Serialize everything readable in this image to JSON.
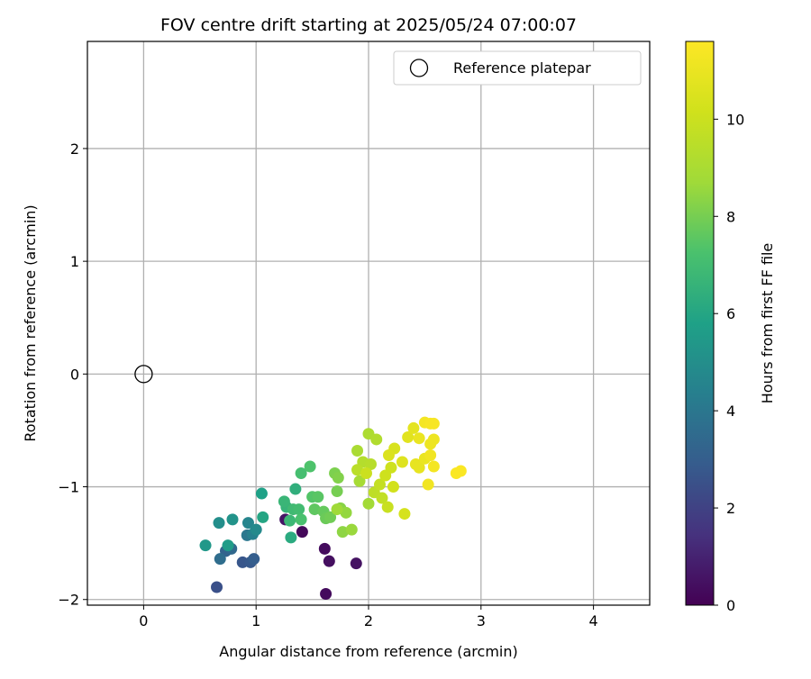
{
  "chart_data": {
    "type": "scatter",
    "title": "FOV centre drift starting at 2025/05/24 07:00:07",
    "xlabel": "Angular distance from reference (arcmin)",
    "ylabel": "Rotation from reference (arcmin)",
    "xlim": [
      -0.5,
      4.5
    ],
    "ylim": [
      -2.05,
      2.95
    ],
    "xticks": [
      0,
      1,
      2,
      3,
      4
    ],
    "xtick_labels": [
      "0",
      "1",
      "2",
      "3",
      "4"
    ],
    "yticks": [
      -2,
      -1,
      0,
      1,
      2
    ],
    "ytick_labels": [
      "−2",
      "−1",
      "0",
      "1",
      "2"
    ],
    "grid": true,
    "legend_position": "top-right",
    "legend_label": "Reference platepar",
    "reference_point": {
      "x": 0,
      "y": 0
    },
    "colorbar": {
      "label": "Hours from first FF file",
      "range": [
        0,
        11.6
      ],
      "ticks": [
        0,
        2,
        4,
        6,
        8,
        10
      ],
      "tick_labels": [
        "0",
        "2",
        "4",
        "6",
        "8",
        "10"
      ],
      "colormap": "viridis"
    },
    "points": [
      {
        "x": 1.41,
        "y": -1.4,
        "t": 0.2
      },
      {
        "x": 1.61,
        "y": -1.55,
        "t": 0.3
      },
      {
        "x": 1.65,
        "y": -1.66,
        "t": 0.4
      },
      {
        "x": 1.62,
        "y": -1.95,
        "t": 0.3
      },
      {
        "x": 1.89,
        "y": -1.68,
        "t": 0.5
      },
      {
        "x": 1.26,
        "y": -1.29,
        "t": 0.6
      },
      {
        "x": 0.65,
        "y": -1.89,
        "t": 2.5
      },
      {
        "x": 0.88,
        "y": -1.67,
        "t": 2.7
      },
      {
        "x": 0.95,
        "y": -1.67,
        "t": 2.8
      },
      {
        "x": 0.98,
        "y": -1.64,
        "t": 3.0
      },
      {
        "x": 0.73,
        "y": -1.57,
        "t": 3.2
      },
      {
        "x": 0.78,
        "y": -1.55,
        "t": 3.4
      },
      {
        "x": 0.68,
        "y": -1.64,
        "t": 3.6
      },
      {
        "x": 0.92,
        "y": -1.43,
        "t": 4.0
      },
      {
        "x": 0.97,
        "y": -1.42,
        "t": 4.4
      },
      {
        "x": 0.93,
        "y": -1.32,
        "t": 4.6
      },
      {
        "x": 1.0,
        "y": -1.38,
        "t": 4.8
      },
      {
        "x": 0.67,
        "y": -1.32,
        "t": 5.0
      },
      {
        "x": 0.79,
        "y": -1.29,
        "t": 5.2
      },
      {
        "x": 0.55,
        "y": -1.52,
        "t": 5.4
      },
      {
        "x": 0.75,
        "y": -1.52,
        "t": 5.6
      },
      {
        "x": 1.05,
        "y": -1.06,
        "t": 5.8
      },
      {
        "x": 1.06,
        "y": -1.27,
        "t": 6.0
      },
      {
        "x": 1.31,
        "y": -1.45,
        "t": 6.2
      },
      {
        "x": 1.35,
        "y": -1.02,
        "t": 6.4
      },
      {
        "x": 1.27,
        "y": -1.18,
        "t": 6.6
      },
      {
        "x": 1.25,
        "y": -1.13,
        "t": 6.7
      },
      {
        "x": 1.3,
        "y": -1.3,
        "t": 6.8
      },
      {
        "x": 1.33,
        "y": -1.2,
        "t": 6.9
      },
      {
        "x": 1.38,
        "y": -1.2,
        "t": 7.0
      },
      {
        "x": 1.4,
        "y": -0.88,
        "t": 7.1
      },
      {
        "x": 1.4,
        "y": -1.29,
        "t": 7.2
      },
      {
        "x": 1.48,
        "y": -0.82,
        "t": 7.3
      },
      {
        "x": 1.5,
        "y": -1.09,
        "t": 7.4
      },
      {
        "x": 1.55,
        "y": -1.09,
        "t": 7.5
      },
      {
        "x": 1.52,
        "y": -1.2,
        "t": 7.6
      },
      {
        "x": 1.6,
        "y": -1.22,
        "t": 7.7
      },
      {
        "x": 1.62,
        "y": -1.28,
        "t": 7.8
      },
      {
        "x": 1.66,
        "y": -1.27,
        "t": 7.9
      },
      {
        "x": 1.72,
        "y": -1.04,
        "t": 8.0
      },
      {
        "x": 1.7,
        "y": -0.88,
        "t": 8.1
      },
      {
        "x": 1.73,
        "y": -0.92,
        "t": 8.2
      },
      {
        "x": 1.75,
        "y": -1.19,
        "t": 8.3
      },
      {
        "x": 1.77,
        "y": -1.4,
        "t": 8.4
      },
      {
        "x": 1.8,
        "y": -1.23,
        "t": 8.5
      },
      {
        "x": 1.85,
        "y": -1.38,
        "t": 8.6
      },
      {
        "x": 1.72,
        "y": -1.2,
        "t": 8.7
      },
      {
        "x": 2.0,
        "y": -1.15,
        "t": 8.8
      },
      {
        "x": 1.92,
        "y": -0.95,
        "t": 8.9
      },
      {
        "x": 1.9,
        "y": -0.68,
        "t": 9.0
      },
      {
        "x": 2.0,
        "y": -0.53,
        "t": 9.1
      },
      {
        "x": 2.07,
        "y": -0.58,
        "t": 9.2
      },
      {
        "x": 1.95,
        "y": -0.78,
        "t": 9.3
      },
      {
        "x": 2.02,
        "y": -0.8,
        "t": 9.4
      },
      {
        "x": 1.9,
        "y": -0.85,
        "t": 9.5
      },
      {
        "x": 2.05,
        "y": -1.05,
        "t": 9.6
      },
      {
        "x": 2.12,
        "y": -1.1,
        "t": 9.7
      },
      {
        "x": 2.1,
        "y": -0.98,
        "t": 9.8
      },
      {
        "x": 2.17,
        "y": -1.18,
        "t": 9.9
      },
      {
        "x": 1.98,
        "y": -0.88,
        "t": 10.0
      },
      {
        "x": 2.2,
        "y": -0.83,
        "t": 10.1
      },
      {
        "x": 2.15,
        "y": -0.9,
        "t": 10.1
      },
      {
        "x": 2.22,
        "y": -1.0,
        "t": 10.2
      },
      {
        "x": 2.32,
        "y": -1.24,
        "t": 10.3
      },
      {
        "x": 2.23,
        "y": -0.66,
        "t": 10.4
      },
      {
        "x": 2.18,
        "y": -0.72,
        "t": 10.5
      },
      {
        "x": 2.3,
        "y": -0.78,
        "t": 10.6
      },
      {
        "x": 2.35,
        "y": -0.56,
        "t": 10.7
      },
      {
        "x": 2.4,
        "y": -0.48,
        "t": 10.8
      },
      {
        "x": 2.42,
        "y": -0.8,
        "t": 10.9
      },
      {
        "x": 2.45,
        "y": -0.83,
        "t": 10.9
      },
      {
        "x": 2.45,
        "y": -0.57,
        "t": 11.0
      },
      {
        "x": 2.5,
        "y": -0.75,
        "t": 11.0
      },
      {
        "x": 2.55,
        "y": -0.62,
        "t": 11.1
      },
      {
        "x": 2.58,
        "y": -0.58,
        "t": 11.1
      },
      {
        "x": 2.53,
        "y": -0.98,
        "t": 11.2
      },
      {
        "x": 2.55,
        "y": -0.72,
        "t": 11.2
      },
      {
        "x": 2.58,
        "y": -0.82,
        "t": 11.3
      },
      {
        "x": 2.5,
        "y": -0.43,
        "t": 11.3
      },
      {
        "x": 2.55,
        "y": -0.44,
        "t": 11.4
      },
      {
        "x": 2.58,
        "y": -0.44,
        "t": 11.4
      },
      {
        "x": 2.78,
        "y": -0.88,
        "t": 11.5
      },
      {
        "x": 2.82,
        "y": -0.86,
        "t": 11.5
      }
    ]
  }
}
